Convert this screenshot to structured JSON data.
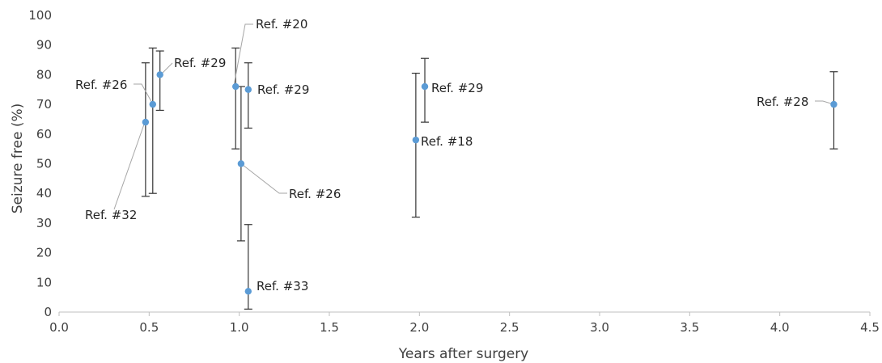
{
  "chart_data": {
    "type": "scatter",
    "xlabel": "Years after surgery",
    "ylabel": "Seizure free (%)",
    "xlim": [
      0,
      4.5
    ],
    "ylim": [
      0,
      100
    ],
    "x_ticks": [
      "0.0",
      "0.5",
      "1.0",
      "1.5",
      "2.0",
      "2.5",
      "3.0",
      "3.5",
      "4.0",
      "4.5"
    ],
    "y_ticks": [
      "0",
      "10",
      "20",
      "30",
      "40",
      "50",
      "60",
      "70",
      "80",
      "90",
      "100"
    ],
    "grid": false,
    "marker_color": "#5b9bd5",
    "points": [
      {
        "label": "Ref. #32",
        "x": 0.48,
        "y": 64,
        "err_low": 39,
        "err_high": 84
      },
      {
        "label": "Ref. #26",
        "x": 0.52,
        "y": 70,
        "err_low": 40,
        "err_high": 89
      },
      {
        "label": "Ref. #29",
        "x": 0.56,
        "y": 80,
        "err_low": 68,
        "err_high": 88
      },
      {
        "label": "Ref. #20",
        "x": 0.98,
        "y": 76,
        "err_low": 55,
        "err_high": 89
      },
      {
        "label": "Ref. #29",
        "x": 1.05,
        "y": 75,
        "err_low": 62,
        "err_high": 84
      },
      {
        "label": "Ref. #26",
        "x": 1.01,
        "y": 50,
        "err_low": 24,
        "err_high": 76
      },
      {
        "label": "Ref. #33",
        "x": 1.05,
        "y": 7,
        "err_low": 1,
        "err_high": 29.5
      },
      {
        "label": "Ref. #18",
        "x": 1.98,
        "y": 58,
        "err_low": 32,
        "err_high": 80.5
      },
      {
        "label": "Ref. #29",
        "x": 2.03,
        "y": 76,
        "err_low": 64,
        "err_high": 85.5
      },
      {
        "label": "Ref. #28",
        "x": 4.3,
        "y": 70,
        "err_low": 55,
        "err_high": 81
      }
    ]
  }
}
